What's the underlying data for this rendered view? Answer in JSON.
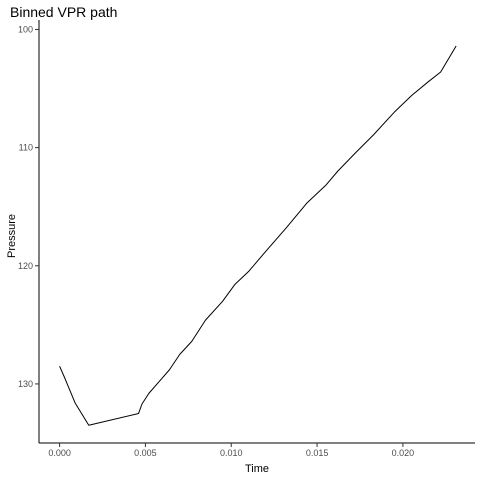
{
  "chart_data": {
    "type": "line",
    "title": "Binned VPR path",
    "xlabel": "Time",
    "ylabel": "Pressure",
    "xlim": [
      -0.0012,
      0.0242
    ],
    "ylim": [
      135.0,
      99.2
    ],
    "y_reversed": true,
    "xticks": [
      0.0,
      0.005,
      0.01,
      0.015,
      0.02
    ],
    "xtick_labels": [
      "0.000",
      "0.005",
      "0.010",
      "0.015",
      "0.020"
    ],
    "yticks": [
      100,
      110,
      120,
      130
    ],
    "ytick_labels": [
      "100",
      "110",
      "120",
      "130"
    ],
    "grid": false,
    "legend": "none",
    "line_color": "#000000",
    "series": [
      {
        "x": [
          0.0,
          0.0003,
          0.0009,
          0.0017,
          0.0046,
          0.0048,
          0.0052,
          0.0058,
          0.0064,
          0.007,
          0.0077,
          0.0085,
          0.0095,
          0.0102,
          0.011,
          0.012,
          0.0132,
          0.0144,
          0.0155,
          0.0162,
          0.0172,
          0.0183,
          0.0195,
          0.0205,
          0.0215,
          0.0222,
          0.0231
        ],
        "y": [
          128.5,
          129.5,
          131.6,
          133.5,
          132.5,
          131.7,
          130.8,
          129.8,
          128.8,
          127.5,
          126.4,
          124.6,
          123.0,
          121.6,
          120.5,
          118.8,
          116.8,
          114.7,
          113.2,
          112.0,
          110.5,
          108.9,
          107.0,
          105.6,
          104.4,
          103.6,
          101.4
        ]
      }
    ]
  }
}
